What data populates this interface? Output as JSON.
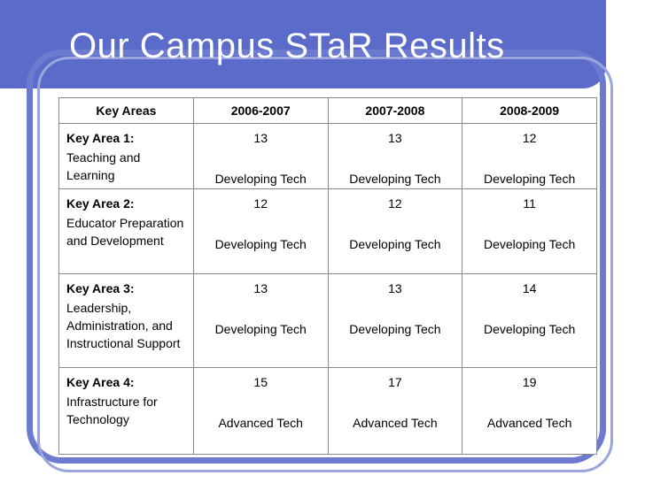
{
  "slide": {
    "title": "Our Campus STaR Results"
  },
  "table": {
    "headers": [
      "Key Areas",
      "2006-2007",
      "2007-2008",
      "2008-2009"
    ],
    "rows": [
      {
        "area": "Key Area 1:",
        "description": "Teaching and Learning",
        "cells": [
          {
            "score": "13",
            "level": "Developing Tech"
          },
          {
            "score": "13",
            "level": "Developing Tech"
          },
          {
            "score": "12",
            "level": "Developing Tech"
          }
        ]
      },
      {
        "area": "Key Area 2:",
        "description": "Educator Preparation and Development",
        "cells": [
          {
            "score": "12",
            "level": "Developing Tech"
          },
          {
            "score": "12",
            "level": "Developing Tech"
          },
          {
            "score": "11",
            "level": "Developing Tech"
          }
        ]
      },
      {
        "area": "Key Area 3:",
        "description": "Leadership, Administration, and Instructional Support",
        "cells": [
          {
            "score": "13",
            "level": "Developing Tech"
          },
          {
            "score": "13",
            "level": "Developing Tech"
          },
          {
            "score": "14",
            "level": "Developing Tech"
          }
        ]
      },
      {
        "area": "Key Area 4:",
        "description": "Infrastructure for Technology",
        "cells": [
          {
            "score": "15",
            "level": "Advanced Tech"
          },
          {
            "score": "17",
            "level": "Advanced Tech"
          },
          {
            "score": "19",
            "level": "Advanced Tech"
          }
        ]
      }
    ]
  },
  "colors": {
    "title_band": "#5a6bc9",
    "frame": "#6c7bd0",
    "title_text": "#ffffff"
  }
}
